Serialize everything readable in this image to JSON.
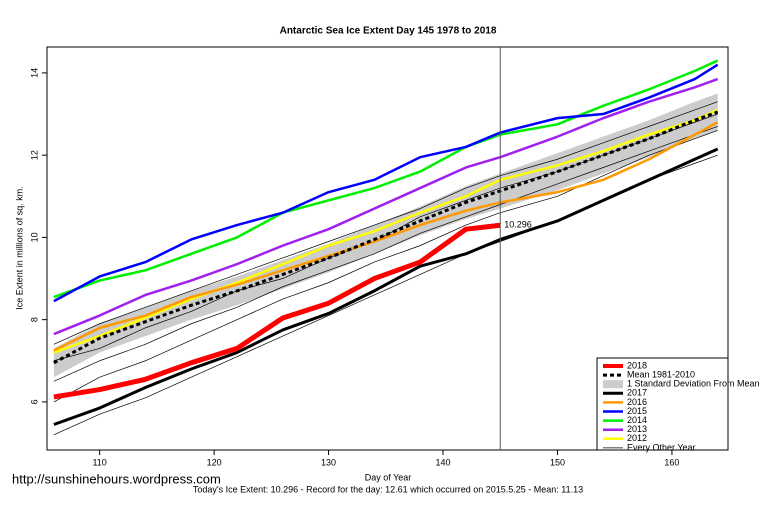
{
  "chart_data": {
    "type": "line",
    "title": "Antarctic Sea Ice Extent Day 145 1978 to 2018",
    "x_label": "Day of Year",
    "y_label": "Ice Extent in millions of sq. km.",
    "footer": "Today's Ice Extent: 10.296  - Record for the day: 12.61 which occurred on 2015.5.25  - Mean: 11.13",
    "source": "http://sunshinehours.wordpress.com",
    "xlim": [
      105.4,
      164.9
    ],
    "ylim": [
      4.83,
      14.63
    ],
    "xticks": [
      110,
      120,
      130,
      140,
      150,
      160
    ],
    "yticks": [
      6,
      8,
      10,
      12,
      14
    ],
    "vline": 145,
    "legend": "bottom-right",
    "x": [
      106,
      110,
      114,
      118,
      122,
      126,
      130,
      134,
      138,
      142,
      145,
      150,
      154,
      158,
      162,
      164
    ],
    "series": [
      {
        "name": "2018",
        "color": "#ff0000",
        "width": 5,
        "values": [
          6.12,
          6.3,
          6.55,
          6.95,
          7.3,
          8.04,
          8.4,
          9.0,
          9.4,
          10.2,
          10.296,
          null,
          null,
          null,
          null,
          null
        ],
        "value_labels": [
          null,
          null,
          null,
          null,
          null,
          null,
          null,
          null,
          null,
          null,
          "10.296",
          null,
          null,
          null,
          null,
          null
        ]
      },
      {
        "name": "Mean 1981-2010",
        "color": "#000000",
        "width": 3,
        "dash": true,
        "values": [
          6.95,
          7.55,
          7.95,
          8.35,
          8.7,
          9.1,
          9.5,
          9.95,
          10.4,
          10.85,
          11.13,
          11.6,
          12.0,
          12.4,
          12.85,
          13.05
        ]
      },
      {
        "name": "1 Standard Deviation From Mean",
        "color": "#cccccc",
        "band": true,
        "low": [
          6.6,
          7.2,
          7.6,
          8.0,
          8.35,
          8.75,
          9.15,
          9.6,
          10.05,
          10.45,
          10.7,
          11.15,
          11.55,
          11.95,
          12.4,
          12.6
        ],
        "high": [
          7.3,
          7.9,
          8.3,
          8.7,
          9.05,
          9.45,
          9.85,
          10.3,
          10.75,
          11.25,
          11.55,
          12.05,
          12.45,
          12.85,
          13.3,
          13.5
        ]
      },
      {
        "name": "2017",
        "color": "#000000",
        "width": 3,
        "values": [
          5.45,
          5.85,
          6.35,
          6.8,
          7.2,
          7.75,
          8.15,
          8.7,
          9.3,
          9.6,
          9.95,
          10.4,
          10.9,
          11.4,
          11.9,
          12.15
        ]
      },
      {
        "name": "2016",
        "color": "#ff9900",
        "width": 2.5,
        "values": [
          7.25,
          7.8,
          8.1,
          8.55,
          8.85,
          9.2,
          9.55,
          9.9,
          10.3,
          10.65,
          10.85,
          11.1,
          11.4,
          11.9,
          12.5,
          12.8
        ]
      },
      {
        "name": "2015",
        "color": "#0000ff",
        "width": 2.5,
        "values": [
          8.45,
          9.05,
          9.4,
          9.95,
          10.3,
          10.6,
          11.1,
          11.4,
          11.95,
          12.2,
          12.55,
          12.9,
          13.0,
          13.4,
          13.85,
          14.2
        ]
      },
      {
        "name": "2014",
        "color": "#00ee00",
        "width": 2.5,
        "values": [
          8.55,
          8.95,
          9.2,
          9.6,
          10.0,
          10.6,
          10.9,
          11.2,
          11.6,
          12.2,
          12.5,
          12.75,
          13.2,
          13.6,
          14.05,
          14.3
        ]
      },
      {
        "name": "2013",
        "color": "#a020f0",
        "width": 2.5,
        "values": [
          7.65,
          8.1,
          8.6,
          8.95,
          9.35,
          9.8,
          10.2,
          10.7,
          11.2,
          11.7,
          11.95,
          12.45,
          12.9,
          13.3,
          13.65,
          13.85
        ]
      },
      {
        "name": "2012",
        "color": "#ffff00",
        "width": 2.5,
        "values": [
          7.2,
          7.6,
          8.05,
          8.5,
          8.9,
          9.35,
          9.8,
          10.15,
          10.6,
          11.0,
          11.4,
          11.75,
          12.1,
          12.5,
          12.85,
          13.1
        ]
      },
      {
        "name": "Every Other Year",
        "color": "#000000",
        "width": 0.7,
        "lines": [
          [
            5.2,
            5.7,
            6.1,
            6.6,
            7.1,
            7.6,
            8.1,
            8.6,
            9.1,
            9.6,
            9.9,
            10.4,
            10.9,
            11.4,
            11.8,
            12.0
          ],
          [
            6.5,
            7.0,
            7.4,
            7.9,
            8.3,
            8.8,
            9.2,
            9.6,
            10.1,
            10.5,
            10.8,
            11.3,
            11.7,
            12.1,
            12.5,
            12.7
          ],
          [
            7.4,
            7.9,
            8.3,
            8.7,
            9.1,
            9.5,
            9.9,
            10.3,
            10.7,
            11.2,
            11.5,
            11.9,
            12.3,
            12.7,
            13.1,
            13.3
          ],
          [
            6.0,
            6.6,
            7.0,
            7.5,
            8.0,
            8.5,
            8.9,
            9.4,
            9.8,
            10.3,
            10.6,
            11.0,
            11.5,
            12.0,
            12.4,
            12.6
          ],
          [
            7.0,
            7.3,
            7.8,
            8.2,
            8.7,
            9.0,
            9.5,
            9.9,
            10.5,
            10.9,
            11.2,
            11.6,
            12.0,
            12.4,
            12.8,
            13.0
          ]
        ]
      }
    ]
  }
}
